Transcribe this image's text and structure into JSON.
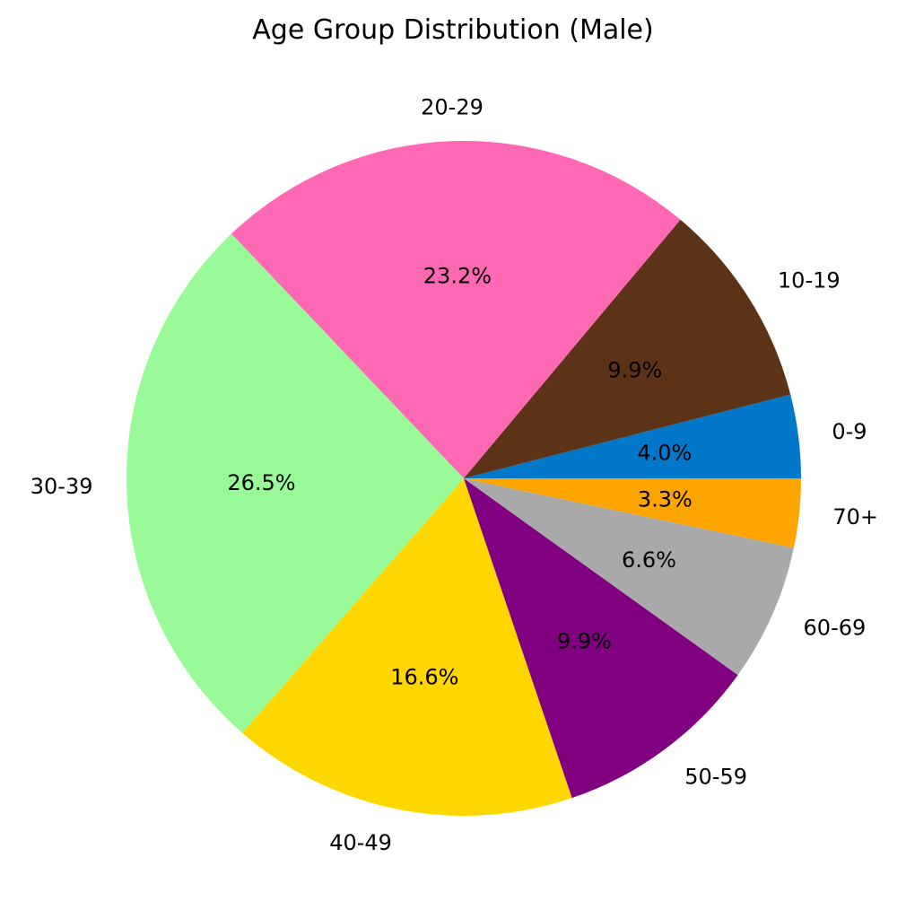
{
  "chart_data": {
    "type": "pie",
    "title": "Age Group Distribution (Male)",
    "start_angle_deg": 0,
    "direction": "counterclockwise",
    "slices": [
      {
        "label": "0-9",
        "pct_label": "4.0%",
        "value": 4.0,
        "color": "#0077c8"
      },
      {
        "label": "10-19",
        "pct_label": "9.9%",
        "value": 9.9,
        "color": "#5c3317"
      },
      {
        "label": "20-29",
        "pct_label": "23.2%",
        "value": 23.2,
        "color": "#ff69b4"
      },
      {
        "label": "30-39",
        "pct_label": "26.5%",
        "value": 26.5,
        "color": "#98fb98"
      },
      {
        "label": "40-49",
        "pct_label": "16.6%",
        "value": 16.6,
        "color": "#ffd700"
      },
      {
        "label": "50-59",
        "pct_label": "9.9%",
        "value": 9.9,
        "color": "#800080"
      },
      {
        "label": "60-69",
        "pct_label": "6.6%",
        "value": 6.6,
        "color": "#a9a9a9"
      },
      {
        "label": "70+",
        "pct_label": "3.3%",
        "value": 3.3,
        "color": "#ffa500"
      }
    ]
  }
}
